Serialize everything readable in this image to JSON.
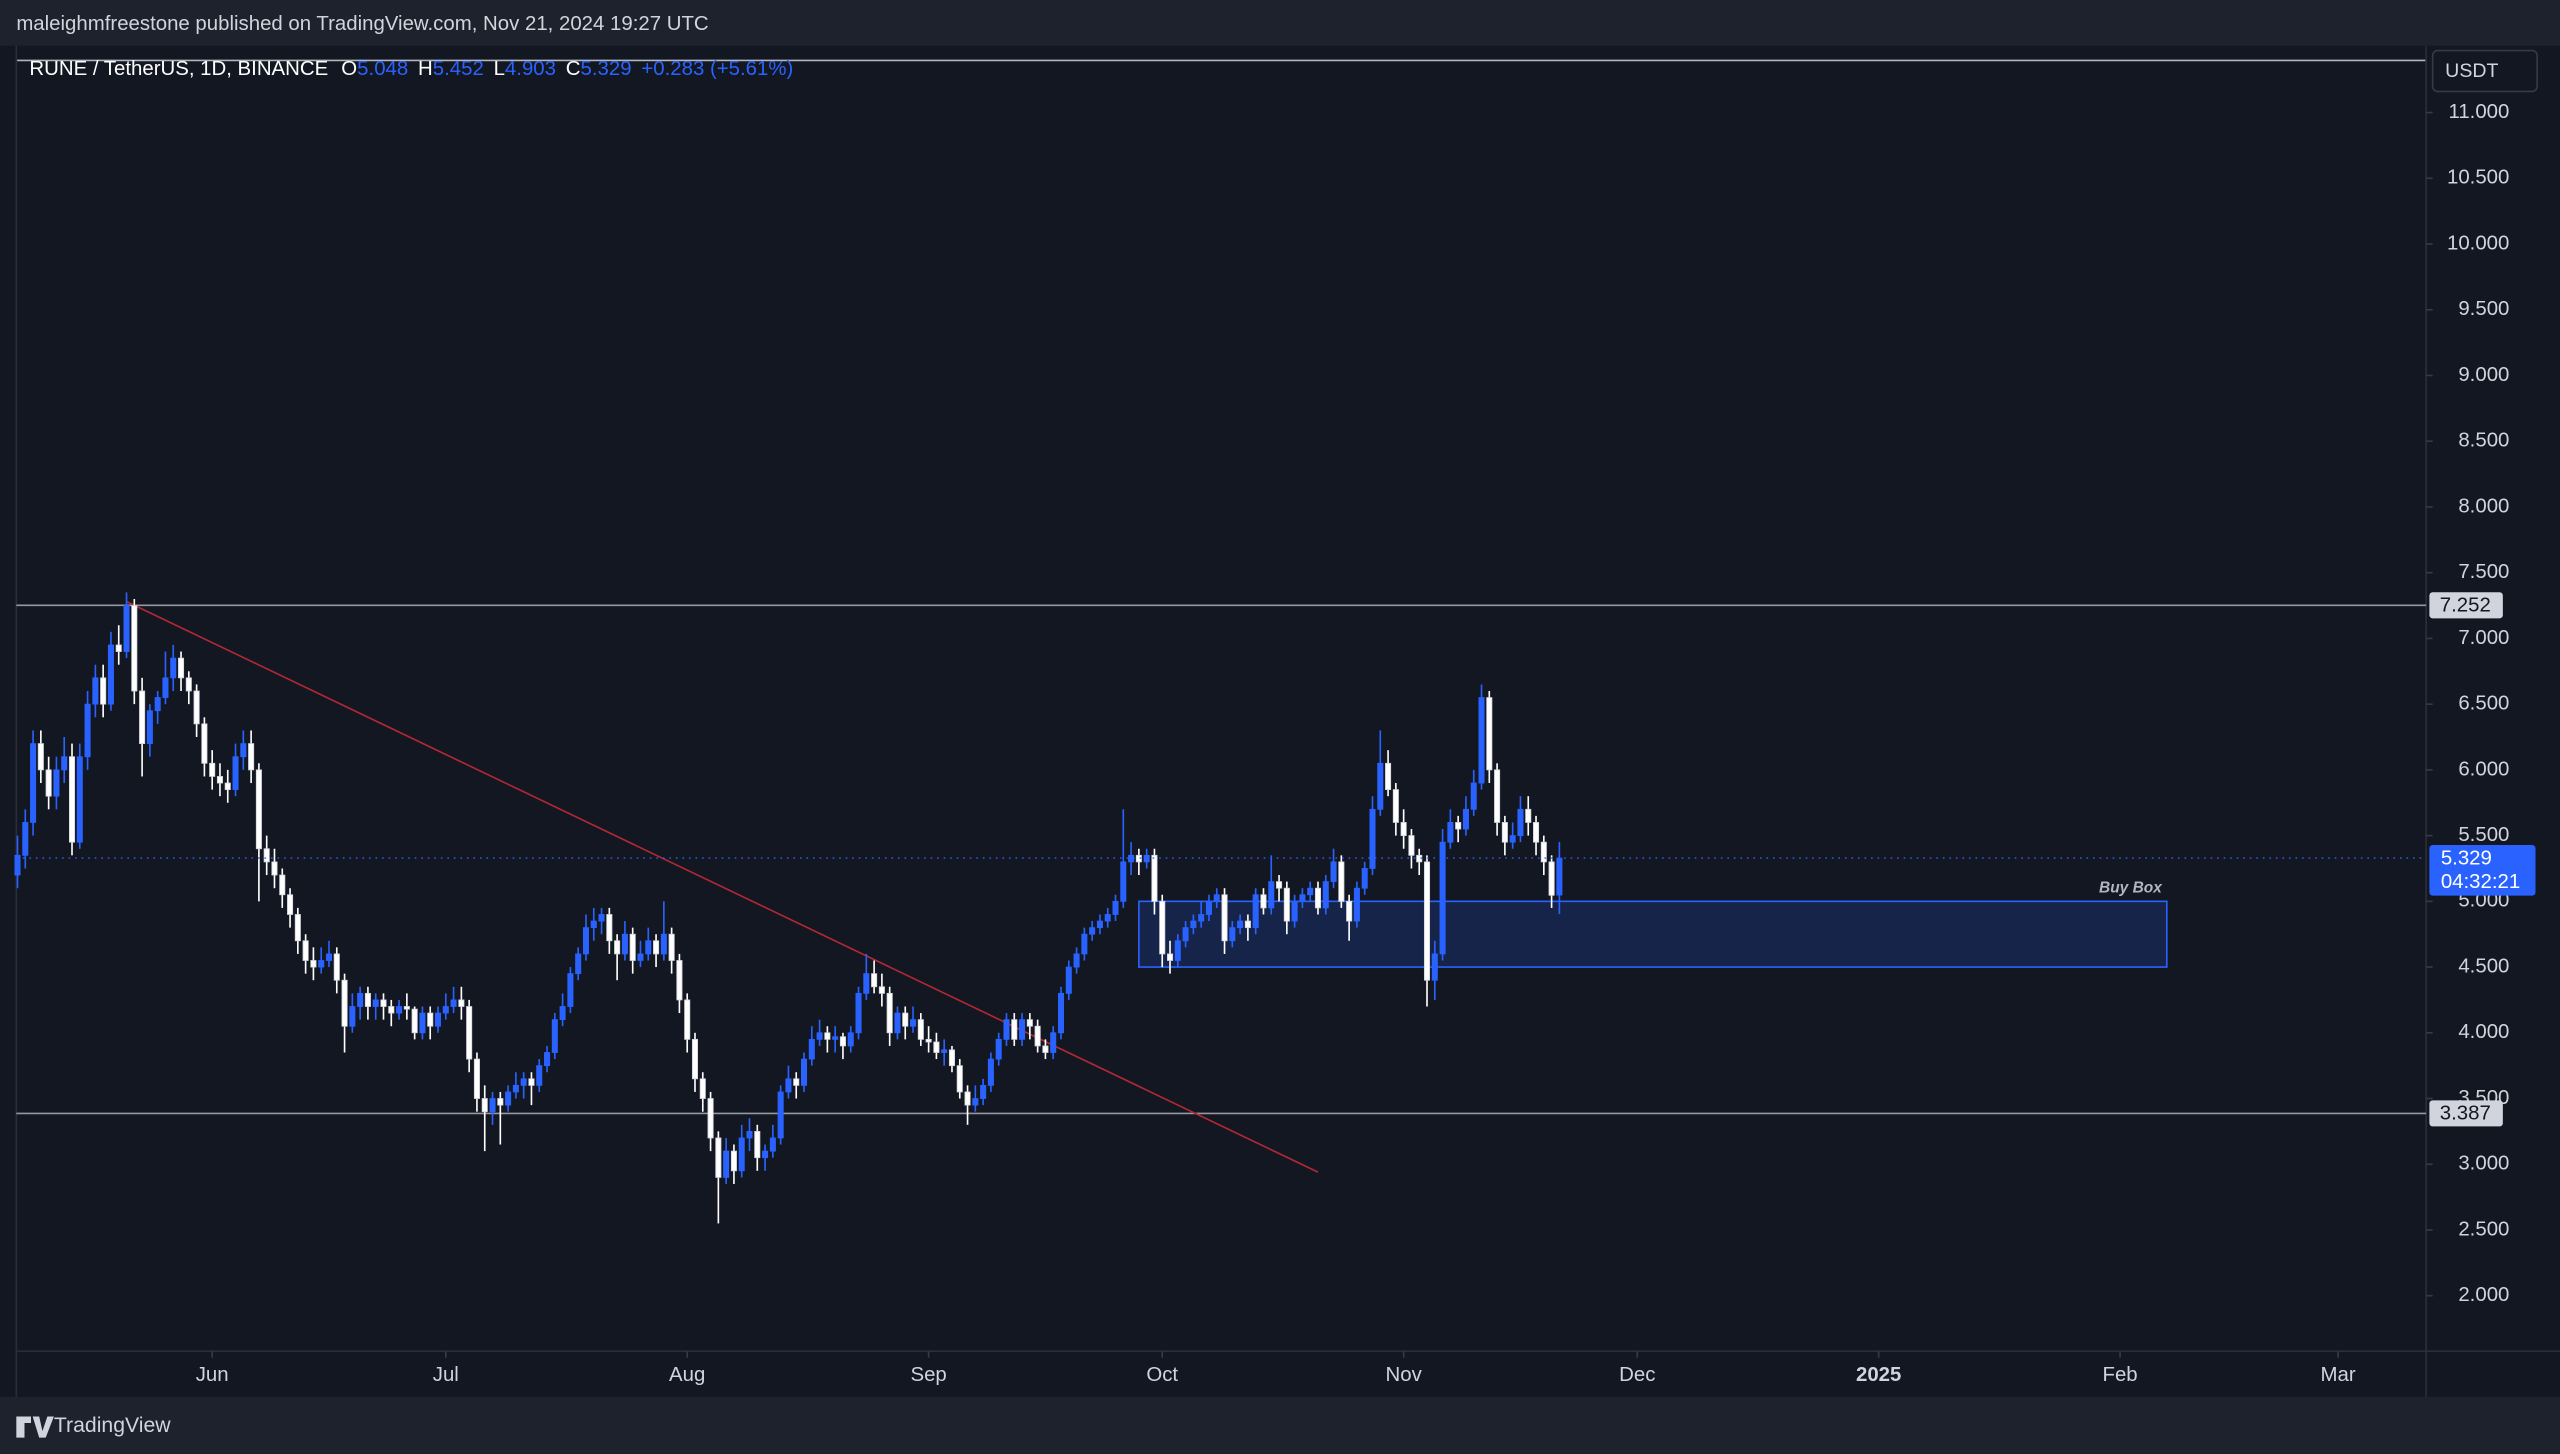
{
  "header": {
    "publisher": "maleighmfreestone published on TradingView.com, Nov 21, 2024 19:27 UTC",
    "brand": "TradingView"
  },
  "chart_data": {
    "type": "candlestick",
    "title": "RUNE / TetherUS, 1D, BINANCE",
    "ohlc_labels": [
      "O",
      "H",
      "L",
      "C"
    ],
    "change": "+0.283 (+5.61%)",
    "currency": "USDT",
    "countdown": "04:32:21",
    "up_color": "#2962ff",
    "down_color": "#ffffff",
    "candles": [
      [
        5.2,
        5.5,
        5.1,
        5.35
      ],
      [
        5.35,
        5.7,
        5.25,
        5.6
      ],
      [
        5.6,
        6.3,
        5.5,
        6.2
      ],
      [
        6.2,
        6.3,
        5.9,
        6.0
      ],
      [
        6.0,
        6.1,
        5.7,
        5.8
      ],
      [
        5.8,
        6.1,
        5.7,
        6.0
      ],
      [
        6.0,
        6.25,
        5.9,
        6.1
      ],
      [
        6.1,
        6.2,
        5.35,
        5.45
      ],
      [
        5.45,
        6.2,
        5.4,
        6.1
      ],
      [
        6.1,
        6.6,
        6.0,
        6.5
      ],
      [
        6.5,
        6.8,
        6.4,
        6.7
      ],
      [
        6.7,
        6.8,
        6.4,
        6.5
      ],
      [
        6.5,
        7.05,
        6.45,
        6.95
      ],
      [
        6.95,
        7.1,
        6.8,
        6.9
      ],
      [
        6.9,
        7.35,
        6.85,
        7.25
      ],
      [
        7.25,
        7.3,
        6.5,
        6.6
      ],
      [
        6.6,
        6.7,
        5.95,
        6.2
      ],
      [
        6.2,
        6.5,
        6.1,
        6.45
      ],
      [
        6.45,
        6.6,
        6.35,
        6.55
      ],
      [
        6.55,
        6.9,
        6.5,
        6.7
      ],
      [
        6.7,
        6.95,
        6.6,
        6.85
      ],
      [
        6.85,
        6.9,
        6.6,
        6.7
      ],
      [
        6.7,
        6.75,
        6.5,
        6.6
      ],
      [
        6.6,
        6.65,
        6.25,
        6.35
      ],
      [
        6.35,
        6.4,
        5.95,
        6.05
      ],
      [
        6.05,
        6.15,
        5.85,
        5.95
      ],
      [
        5.95,
        6.05,
        5.8,
        5.9
      ],
      [
        5.9,
        6.0,
        5.75,
        5.85
      ],
      [
        5.85,
        6.2,
        5.8,
        6.1
      ],
      [
        6.1,
        6.3,
        6.0,
        6.2
      ],
      [
        6.2,
        6.3,
        5.9,
        6.0
      ],
      [
        6.0,
        6.05,
        5.0,
        5.4
      ],
      [
        5.4,
        5.5,
        5.2,
        5.3
      ],
      [
        5.3,
        5.4,
        5.1,
        5.2
      ],
      [
        5.2,
        5.25,
        4.95,
        5.05
      ],
      [
        5.05,
        5.1,
        4.8,
        4.9
      ],
      [
        4.9,
        4.95,
        4.6,
        4.7
      ],
      [
        4.7,
        4.75,
        4.45,
        4.55
      ],
      [
        4.55,
        4.65,
        4.4,
        4.5
      ],
      [
        4.5,
        4.65,
        4.45,
        4.55
      ],
      [
        4.55,
        4.7,
        4.5,
        4.6
      ],
      [
        4.6,
        4.65,
        4.3,
        4.4
      ],
      [
        4.4,
        4.45,
        3.85,
        4.05
      ],
      [
        4.05,
        4.3,
        4.0,
        4.2
      ],
      [
        4.2,
        4.35,
        4.1,
        4.3
      ],
      [
        4.3,
        4.35,
        4.1,
        4.2
      ],
      [
        4.2,
        4.3,
        4.1,
        4.25
      ],
      [
        4.25,
        4.3,
        4.1,
        4.2
      ],
      [
        4.2,
        4.25,
        4.05,
        4.15
      ],
      [
        4.15,
        4.25,
        4.1,
        4.2
      ],
      [
        4.2,
        4.3,
        4.1,
        4.18
      ],
      [
        4.18,
        4.2,
        3.95,
        4.0
      ],
      [
        4.0,
        4.2,
        3.95,
        4.15
      ],
      [
        4.15,
        4.2,
        3.95,
        4.05
      ],
      [
        4.05,
        4.2,
        4.0,
        4.15
      ],
      [
        4.15,
        4.3,
        4.1,
        4.2
      ],
      [
        4.2,
        4.35,
        4.15,
        4.25
      ],
      [
        4.25,
        4.35,
        4.1,
        4.2
      ],
      [
        4.2,
        4.25,
        3.7,
        3.8
      ],
      [
        3.8,
        3.85,
        3.4,
        3.5
      ],
      [
        3.5,
        3.6,
        3.1,
        3.4
      ],
      [
        3.4,
        3.55,
        3.3,
        3.5
      ],
      [
        3.5,
        3.55,
        3.15,
        3.45
      ],
      [
        3.45,
        3.6,
        3.4,
        3.55
      ],
      [
        3.55,
        3.7,
        3.5,
        3.6
      ],
      [
        3.6,
        3.7,
        3.5,
        3.65
      ],
      [
        3.65,
        3.7,
        3.45,
        3.6
      ],
      [
        3.6,
        3.8,
        3.55,
        3.75
      ],
      [
        3.75,
        3.9,
        3.7,
        3.85
      ],
      [
        3.85,
        4.15,
        3.8,
        4.1
      ],
      [
        4.1,
        4.3,
        4.05,
        4.2
      ],
      [
        4.2,
        4.5,
        4.15,
        4.45
      ],
      [
        4.45,
        4.65,
        4.4,
        4.6
      ],
      [
        4.6,
        4.9,
        4.55,
        4.8
      ],
      [
        4.8,
        4.95,
        4.7,
        4.85
      ],
      [
        4.85,
        4.95,
        4.75,
        4.9
      ],
      [
        4.9,
        4.95,
        4.6,
        4.7
      ],
      [
        4.7,
        4.75,
        4.4,
        4.6
      ],
      [
        4.6,
        4.85,
        4.55,
        4.75
      ],
      [
        4.75,
        4.8,
        4.45,
        4.55
      ],
      [
        4.55,
        4.7,
        4.5,
        4.6
      ],
      [
        4.6,
        4.8,
        4.55,
        4.7
      ],
      [
        4.7,
        4.75,
        4.5,
        4.6
      ],
      [
        4.6,
        5.0,
        4.55,
        4.75
      ],
      [
        4.75,
        4.8,
        4.45,
        4.55
      ],
      [
        4.55,
        4.6,
        4.15,
        4.25
      ],
      [
        4.25,
        4.3,
        3.85,
        3.95
      ],
      [
        3.95,
        4.0,
        3.55,
        3.65
      ],
      [
        3.65,
        3.7,
        3.4,
        3.5
      ],
      [
        3.5,
        3.55,
        3.1,
        3.2
      ],
      [
        3.2,
        3.25,
        2.55,
        2.9
      ],
      [
        2.9,
        3.2,
        2.85,
        3.1
      ],
      [
        3.1,
        3.15,
        2.85,
        2.95
      ],
      [
        2.95,
        3.3,
        2.9,
        3.2
      ],
      [
        3.2,
        3.35,
        3.1,
        3.25
      ],
      [
        3.25,
        3.3,
        2.95,
        3.05
      ],
      [
        3.05,
        3.15,
        2.95,
        3.1
      ],
      [
        3.1,
        3.3,
        3.05,
        3.2
      ],
      [
        3.2,
        3.6,
        3.15,
        3.55
      ],
      [
        3.55,
        3.75,
        3.5,
        3.65
      ],
      [
        3.65,
        3.7,
        3.5,
        3.6
      ],
      [
        3.6,
        3.85,
        3.55,
        3.8
      ],
      [
        3.8,
        4.05,
        3.75,
        3.95
      ],
      [
        3.95,
        4.1,
        3.9,
        4.0
      ],
      [
        4.0,
        4.05,
        3.85,
        3.95
      ],
      [
        3.95,
        4.05,
        3.85,
        3.97
      ],
      [
        3.97,
        4.0,
        3.8,
        3.9
      ],
      [
        3.9,
        4.05,
        3.85,
        4.0
      ],
      [
        4.0,
        4.35,
        3.95,
        4.3
      ],
      [
        4.3,
        4.6,
        4.25,
        4.45
      ],
      [
        4.45,
        4.55,
        4.3,
        4.35
      ],
      [
        4.35,
        4.45,
        4.2,
        4.3
      ],
      [
        4.3,
        4.35,
        3.9,
        4.0
      ],
      [
        4.0,
        4.2,
        3.95,
        4.15
      ],
      [
        4.15,
        4.2,
        3.95,
        4.05
      ],
      [
        4.05,
        4.2,
        4.0,
        4.1
      ],
      [
        4.1,
        4.15,
        3.9,
        3.95
      ],
      [
        3.95,
        4.05,
        3.85,
        3.93
      ],
      [
        3.93,
        4.0,
        3.8,
        3.85
      ],
      [
        3.85,
        3.95,
        3.75,
        3.87
      ],
      [
        3.87,
        3.9,
        3.7,
        3.75
      ],
      [
        3.75,
        3.8,
        3.5,
        3.55
      ],
      [
        3.55,
        3.6,
        3.3,
        3.45
      ],
      [
        3.45,
        3.6,
        3.4,
        3.5
      ],
      [
        3.5,
        3.65,
        3.45,
        3.6
      ],
      [
        3.6,
        3.85,
        3.55,
        3.8
      ],
      [
        3.8,
        4.0,
        3.75,
        3.95
      ],
      [
        3.95,
        4.15,
        3.9,
        4.1
      ],
      [
        4.1,
        4.15,
        3.9,
        3.95
      ],
      [
        3.95,
        4.15,
        3.9,
        4.1
      ],
      [
        4.1,
        4.15,
        3.95,
        4.05
      ],
      [
        4.05,
        4.1,
        3.85,
        3.9
      ],
      [
        3.9,
        3.95,
        3.8,
        3.85
      ],
      [
        3.85,
        4.05,
        3.8,
        4.0
      ],
      [
        4.0,
        4.35,
        3.95,
        4.3
      ],
      [
        4.3,
        4.55,
        4.25,
        4.5
      ],
      [
        4.5,
        4.65,
        4.45,
        4.6
      ],
      [
        4.6,
        4.8,
        4.55,
        4.75
      ],
      [
        4.75,
        4.85,
        4.7,
        4.8
      ],
      [
        4.8,
        4.9,
        4.75,
        4.85
      ],
      [
        4.85,
        4.95,
        4.8,
        4.9
      ],
      [
        4.9,
        5.05,
        4.85,
        5.0
      ],
      [
        5.0,
        5.7,
        4.95,
        5.3
      ],
      [
        5.3,
        5.45,
        5.2,
        5.35
      ],
      [
        5.35,
        5.4,
        5.2,
        5.3
      ],
      [
        5.3,
        5.4,
        5.25,
        5.35
      ],
      [
        5.35,
        5.4,
        4.9,
        5.0
      ],
      [
        5.0,
        5.05,
        4.5,
        4.6
      ],
      [
        4.6,
        4.7,
        4.45,
        4.55
      ],
      [
        4.55,
        4.75,
        4.5,
        4.7
      ],
      [
        4.7,
        4.85,
        4.65,
        4.8
      ],
      [
        4.8,
        4.9,
        4.75,
        4.85
      ],
      [
        4.85,
        5.0,
        4.8,
        4.9
      ],
      [
        4.9,
        5.05,
        4.85,
        5.0
      ],
      [
        5.0,
        5.1,
        4.95,
        5.05
      ],
      [
        5.05,
        5.1,
        4.6,
        4.7
      ],
      [
        4.7,
        4.85,
        4.65,
        4.8
      ],
      [
        4.8,
        4.9,
        4.75,
        4.85
      ],
      [
        4.85,
        4.9,
        4.7,
        4.8
      ],
      [
        4.8,
        5.1,
        4.75,
        5.05
      ],
      [
        5.05,
        5.1,
        4.9,
        4.95
      ],
      [
        4.95,
        5.35,
        4.9,
        5.15
      ],
      [
        5.15,
        5.2,
        5.0,
        5.1
      ],
      [
        5.1,
        5.15,
        4.75,
        4.85
      ],
      [
        4.85,
        5.05,
        4.8,
        5.0
      ],
      [
        5.0,
        5.1,
        4.95,
        5.05
      ],
      [
        5.05,
        5.15,
        5.0,
        5.1
      ],
      [
        5.1,
        5.15,
        4.9,
        4.95
      ],
      [
        4.95,
        5.2,
        4.9,
        5.15
      ],
      [
        5.15,
        5.4,
        5.1,
        5.3
      ],
      [
        5.3,
        5.35,
        4.95,
        5.0
      ],
      [
        5.0,
        5.05,
        4.7,
        4.85
      ],
      [
        4.85,
        5.15,
        4.8,
        5.1
      ],
      [
        5.1,
        5.3,
        5.05,
        5.25
      ],
      [
        5.25,
        5.8,
        5.2,
        5.7
      ],
      [
        5.7,
        6.3,
        5.65,
        6.05
      ],
      [
        6.05,
        6.15,
        5.8,
        5.85
      ],
      [
        5.85,
        5.9,
        5.5,
        5.6
      ],
      [
        5.6,
        5.7,
        5.4,
        5.5
      ],
      [
        5.5,
        5.55,
        5.25,
        5.35
      ],
      [
        5.35,
        5.4,
        5.2,
        5.3
      ],
      [
        5.3,
        5.35,
        4.2,
        4.4
      ],
      [
        4.4,
        4.7,
        4.25,
        4.6
      ],
      [
        4.6,
        5.55,
        4.55,
        5.45
      ],
      [
        5.45,
        5.7,
        5.4,
        5.6
      ],
      [
        5.6,
        5.65,
        5.45,
        5.55
      ],
      [
        5.55,
        5.8,
        5.5,
        5.7
      ],
      [
        5.7,
        6.0,
        5.65,
        5.9
      ],
      [
        5.9,
        6.65,
        5.85,
        6.55
      ],
      [
        6.55,
        6.6,
        5.9,
        6.0
      ],
      [
        6.0,
        6.05,
        5.5,
        5.6
      ],
      [
        5.6,
        5.65,
        5.35,
        5.45
      ],
      [
        5.45,
        5.6,
        5.4,
        5.5
      ],
      [
        5.5,
        5.8,
        5.45,
        5.7
      ],
      [
        5.7,
        5.8,
        5.5,
        5.6
      ],
      [
        5.6,
        5.65,
        5.35,
        5.45
      ],
      [
        5.45,
        5.5,
        5.2,
        5.3
      ],
      [
        5.3,
        5.35,
        4.95,
        5.046
      ],
      [
        5.048,
        5.452,
        4.903,
        5.329
      ]
    ],
    "xlim": [
      -0.15,
      309.3
    ],
    "xticks": [
      {
        "value": 25,
        "label": "Jun"
      },
      {
        "value": 55,
        "label": "Jul"
      },
      {
        "value": 86,
        "label": "Aug"
      },
      {
        "value": 117,
        "label": "Sep"
      },
      {
        "value": 147,
        "label": "Oct"
      },
      {
        "value": 178,
        "label": "Nov"
      },
      {
        "value": 208,
        "label": "Dec"
      },
      {
        "value": 239,
        "label": "2025"
      },
      {
        "value": 270,
        "label": "Feb"
      },
      {
        "value": 298,
        "label": "Mar"
      }
    ],
    "ylim": [
      1.578,
      11.397
    ],
    "yticks": [
      {
        "value": 2,
        "label": "2.000"
      },
      {
        "value": 2.5,
        "label": "2.500"
      },
      {
        "value": 3,
        "label": "3.000"
      },
      {
        "value": 3.5,
        "label": "3.500"
      },
      {
        "value": 4,
        "label": "4.000"
      },
      {
        "value": 4.5,
        "label": "4.500"
      },
      {
        "value": 5,
        "label": "5.000"
      },
      {
        "value": 5.5,
        "label": "5.500"
      },
      {
        "value": 6,
        "label": "6.000"
      },
      {
        "value": 6.5,
        "label": "6.500"
      },
      {
        "value": 7,
        "label": "7.000"
      },
      {
        "value": 7.5,
        "label": "7.500"
      },
      {
        "value": 8,
        "label": "8.000"
      },
      {
        "value": 8.5,
        "label": "8.500"
      },
      {
        "value": 9,
        "label": "9.000"
      },
      {
        "value": 9.5,
        "label": "9.500"
      },
      {
        "value": 10,
        "label": "10.000"
      },
      {
        "value": 10.5,
        "label": "10.500"
      },
      {
        "value": 11,
        "label": "11.000"
      }
    ],
    "hlines": [
      7.252,
      3.387
    ],
    "trendline": {
      "x": [
        14,
        167
      ],
      "y": [
        7.28,
        2.94
      ],
      "color": "#b22833"
    },
    "zones": [
      {
        "label": "Buy Box",
        "x": [
          144,
          276
        ],
        "y": [
          4.5,
          5.0
        ]
      }
    ]
  }
}
